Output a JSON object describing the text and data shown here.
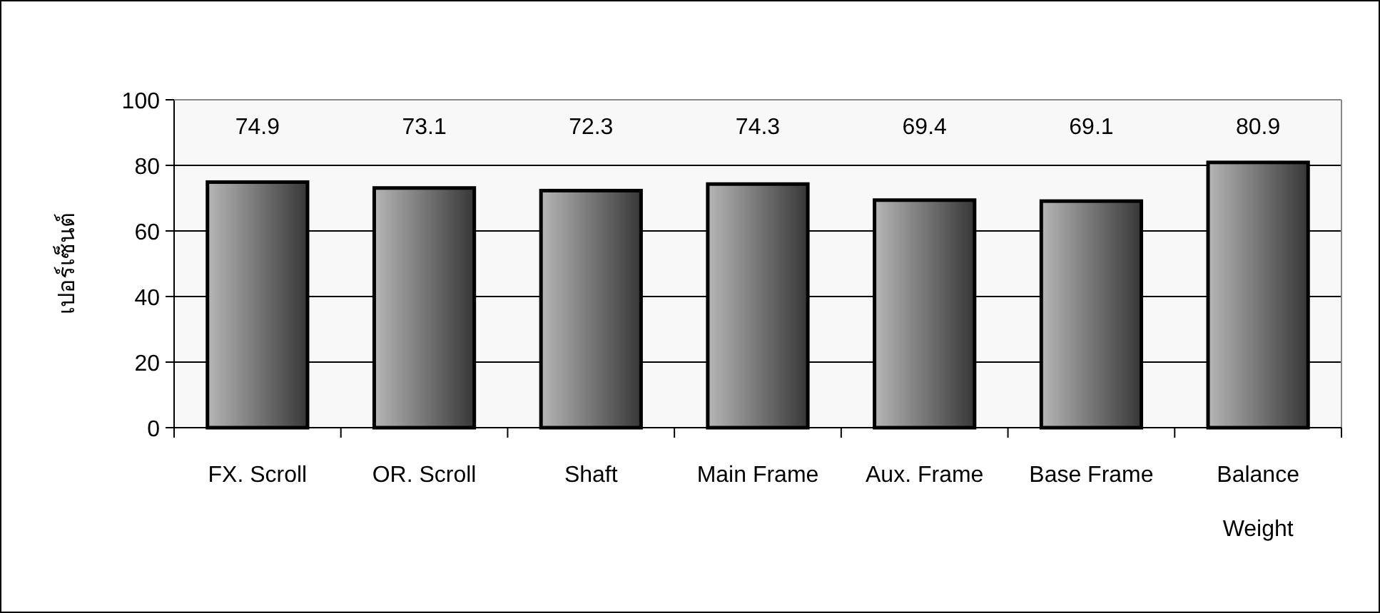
{
  "chart_data": {
    "type": "bar",
    "ylabel": "เปอร์เซ็นต์",
    "categories": [
      "FX. Scroll",
      "OR. Scroll",
      "Shaft",
      "Main Frame",
      "Aux. Frame",
      "Base Frame",
      "Balance Weight"
    ],
    "values": [
      74.9,
      73.1,
      72.3,
      74.3,
      69.4,
      69.1,
      80.9
    ],
    "ylim": [
      0,
      100
    ],
    "yticks": [
      0,
      20,
      40,
      60,
      80,
      100
    ],
    "grid": "y",
    "data_labels": true
  }
}
